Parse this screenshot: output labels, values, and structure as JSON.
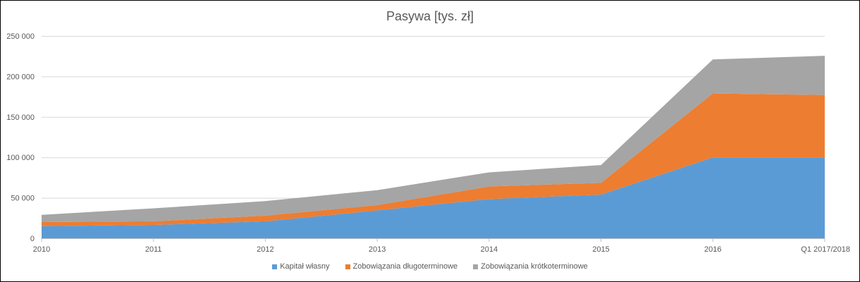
{
  "chart_data": {
    "type": "area",
    "stacked": true,
    "title": "Pasywa [tys. zł]",
    "xlabel": "",
    "ylabel": "",
    "categories": [
      "2010",
      "2011",
      "2012",
      "2013",
      "2014",
      "2015",
      "2016",
      "Q1 2017/2018"
    ],
    "ylim": [
      0,
      250000
    ],
    "yticks": [
      0,
      50000,
      100000,
      150000,
      200000,
      250000
    ],
    "ytick_labels": [
      "0",
      "50 000",
      "100 000",
      "150 000",
      "200 000",
      "250 000"
    ],
    "grid": true,
    "legend_position": "bottom",
    "series": [
      {
        "name": "Kapitał własny",
        "color": "#5B9BD5",
        "values": [
          15000,
          16500,
          21000,
          34500,
          48500,
          54000,
          100000,
          100000
        ]
      },
      {
        "name": "Zobowiązania długoterminowe",
        "color": "#ED7D31",
        "values": [
          5000,
          4500,
          7000,
          6500,
          15500,
          14500,
          79000,
          77000
        ]
      },
      {
        "name": "Zobowiązania krótkoterminowe",
        "color": "#A5A5A5",
        "values": [
          9000,
          16000,
          18000,
          18500,
          17500,
          22000,
          42000,
          48500
        ]
      }
    ]
  }
}
